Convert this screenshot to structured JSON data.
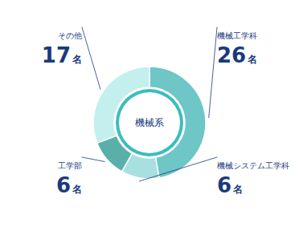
{
  "chart_data": {
    "type": "pie",
    "categories": [
      "機械工学科",
      "機械システム工学科",
      "工学部",
      "その他"
    ],
    "values": [
      26,
      6,
      6,
      17
    ],
    "value_labels": [
      "26名",
      "6名",
      "6名",
      "17名"
    ],
    "colors": [
      "#6ec6c6",
      "#a8e0df",
      "#5aafaa",
      "#c4efef"
    ],
    "data_labels": true,
    "annotations": [
      {
        "text": "機械系"
      }
    ]
  }
}
